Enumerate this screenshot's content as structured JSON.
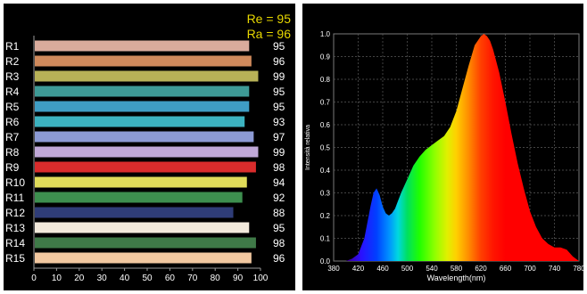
{
  "chart_data": [
    {
      "type": "bar",
      "orientation": "horizontal",
      "categories": [
        "R1",
        "R2",
        "R3",
        "R4",
        "R5",
        "R6",
        "R7",
        "R8",
        "R9",
        "R10",
        "R11",
        "R12",
        "R13",
        "R14",
        "R15"
      ],
      "values": [
        95,
        96,
        99,
        95,
        95,
        93,
        97,
        99,
        98,
        94,
        92,
        88,
        95,
        98,
        96
      ],
      "value_labels": [
        "95",
        "96",
        "99",
        "95",
        "95",
        "93",
        "97",
        "99",
        "98",
        "94",
        "92",
        "88",
        "95",
        "98",
        "96"
      ],
      "colors": [
        "#d9ab9c",
        "#d08a5c",
        "#b8b257",
        "#3e9a96",
        "#3f9dc4",
        "#3cb2c0",
        "#8c9ad4",
        "#c0a8d8",
        "#d92c2c",
        "#e0dc5a",
        "#3d8f4f",
        "#2f3d78",
        "#f3eadc",
        "#3f7a48",
        "#f2c8a0"
      ],
      "xlim": [
        0,
        100
      ],
      "xticks": [
        "0",
        "10",
        "20",
        "30",
        "40",
        "50",
        "60",
        "70",
        "80",
        "90",
        "100"
      ],
      "annotations": [
        "Re = 95",
        "Ra = 96"
      ],
      "annotation_color": "#e8d800",
      "background": "#000000"
    },
    {
      "type": "area",
      "xlabel": "Wavelength(nm)",
      "ylabel": "Intensità relativa",
      "xlim": [
        380,
        780
      ],
      "ylim": [
        0,
        1.0
      ],
      "xticks": [
        "380",
        "420",
        "460",
        "500",
        "540",
        "580",
        "620",
        "660",
        "700",
        "740",
        "780"
      ],
      "yticks": [
        "0.0",
        "0.1",
        "0.2",
        "0.3",
        "0.4",
        "0.5",
        "0.6",
        "0.7",
        "0.8",
        "0.9",
        "1.0"
      ],
      "x": [
        380,
        400,
        410,
        420,
        430,
        440,
        445,
        450,
        455,
        460,
        465,
        470,
        475,
        480,
        490,
        500,
        510,
        520,
        530,
        540,
        550,
        560,
        570,
        580,
        590,
        600,
        610,
        620,
        625,
        630,
        635,
        640,
        650,
        660,
        670,
        680,
        690,
        700,
        710,
        720,
        730,
        740,
        750,
        760,
        770,
        780
      ],
      "y": [
        0,
        0,
        0.01,
        0.03,
        0.1,
        0.24,
        0.3,
        0.32,
        0.29,
        0.24,
        0.21,
        0.2,
        0.21,
        0.23,
        0.3,
        0.36,
        0.42,
        0.46,
        0.49,
        0.51,
        0.53,
        0.55,
        0.59,
        0.66,
        0.76,
        0.86,
        0.95,
        0.99,
        1.0,
        0.99,
        0.97,
        0.93,
        0.83,
        0.7,
        0.56,
        0.43,
        0.32,
        0.22,
        0.15,
        0.1,
        0.075,
        0.06,
        0.06,
        0.05,
        0.02,
        0
      ],
      "grid": true,
      "background": "#000000"
    }
  ]
}
